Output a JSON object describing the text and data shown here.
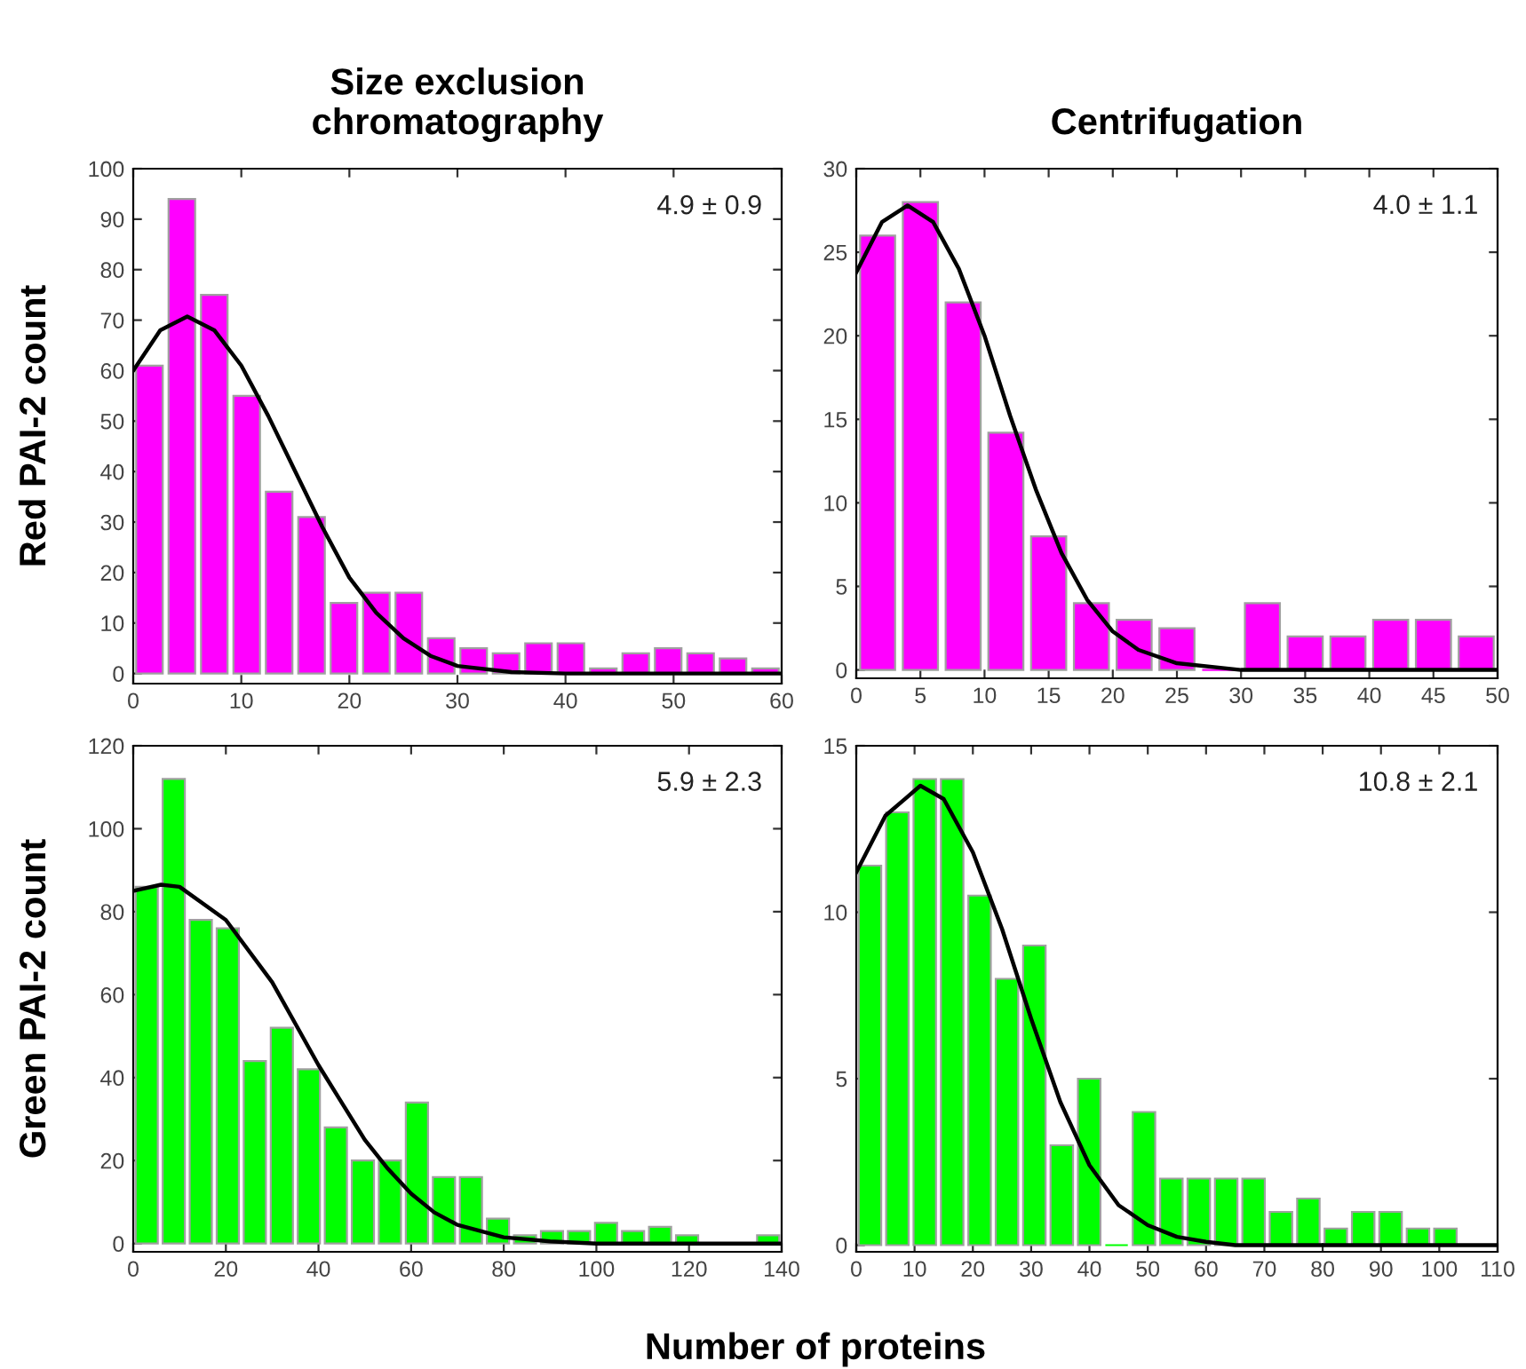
{
  "chart_data": [
    {
      "type": "histogram",
      "title": "Size exclusion\nchromatography",
      "ylabel": "Red PAI-2 count",
      "annotations": [
        "4.9 ± 0.9"
      ],
      "xlim": [
        0,
        60
      ],
      "ylim": [
        -2,
        100
      ],
      "xticks": [
        0,
        10,
        20,
        30,
        40,
        50,
        60
      ],
      "yticks": [
        0,
        10,
        20,
        30,
        40,
        50,
        60,
        70,
        80,
        90,
        100
      ],
      "grid": false,
      "legend": false,
      "series": [
        {
          "color": "#ff00ff",
          "bins": [
            0,
            3,
            6,
            9,
            12,
            15,
            18,
            21,
            24,
            27,
            30,
            33,
            36,
            39,
            42,
            45,
            48,
            51,
            54,
            57,
            60
          ],
          "values": [
            61,
            94,
            75,
            55,
            36,
            31,
            14,
            16,
            16,
            7,
            5,
            4,
            6,
            6,
            1,
            4,
            5,
            4,
            3,
            1
          ]
        },
        {
          "type": "line",
          "color": "#000000",
          "x": [
            0,
            2.5,
            5,
            7.5,
            10,
            12.5,
            15,
            17.5,
            20,
            22.5,
            25,
            27.5,
            30,
            35,
            40,
            60
          ],
          "values": [
            60,
            68,
            70.7,
            68,
            61,
            51,
            40,
            29,
            19,
            12,
            7,
            3.5,
            1.5,
            0.3,
            0,
            0
          ]
        }
      ]
    },
    {
      "type": "histogram",
      "title": "Centrifugation",
      "annotations": [
        "4.0 ± 1.1"
      ],
      "xlim": [
        0,
        50
      ],
      "ylim": [
        -0.5,
        30
      ],
      "xticks": [
        0,
        5,
        10,
        15,
        20,
        25,
        30,
        35,
        40,
        45,
        50
      ],
      "yticks": [
        0,
        5,
        10,
        15,
        20,
        25,
        30
      ],
      "grid": false,
      "legend": false,
      "series": [
        {
          "color": "#ff00ff",
          "bins": [
            0,
            3.33,
            6.67,
            10,
            13.33,
            16.67,
            20,
            23.33,
            26.67,
            30,
            33.33,
            36.67,
            40,
            43.33,
            46.67,
            50
          ],
          "values": [
            26,
            28,
            22,
            14.2,
            8,
            4,
            3,
            2.5,
            0,
            4,
            2,
            2,
            3,
            3,
            2
          ]
        },
        {
          "type": "line",
          "color": "#000000",
          "x": [
            0,
            2,
            4,
            6,
            8,
            10,
            12,
            14,
            16,
            18,
            20,
            22,
            25,
            30,
            50
          ],
          "values": [
            23.8,
            26.8,
            27.8,
            26.8,
            24,
            20,
            15.2,
            10.8,
            7,
            4.2,
            2.3,
            1.2,
            0.4,
            0,
            0
          ]
        }
      ]
    },
    {
      "type": "histogram",
      "ylabel": "Green PAI-2 count",
      "annotations": [
        "5.9 ± 2.3",
        "Number of proteins"
      ],
      "xlim": [
        0,
        140
      ],
      "ylim": [
        -2,
        120
      ],
      "xticks": [
        0,
        20,
        40,
        60,
        80,
        100,
        120,
        140
      ],
      "yticks": [
        0,
        20,
        40,
        60,
        80,
        100,
        120
      ],
      "grid": false,
      "legend": false,
      "series": [
        {
          "color": "#00ff00",
          "bins": [
            0,
            5.83,
            11.67,
            17.5,
            23.33,
            29.17,
            35,
            40.83,
            46.67,
            52.5,
            58.33,
            64.17,
            70,
            75.83,
            81.67,
            87.5,
            93.33,
            99.17,
            105,
            110.83,
            116.67,
            122.5,
            128.33,
            134.17,
            140
          ],
          "values": [
            86,
            112,
            78,
            76,
            44,
            52,
            42,
            28,
            20,
            20,
            34,
            16,
            16,
            6,
            2,
            3,
            3,
            5,
            3,
            4,
            2,
            0,
            0,
            2
          ]
        },
        {
          "type": "line",
          "color": "#000000",
          "x": [
            0,
            6,
            10,
            20,
            30,
            35,
            40,
            45,
            50,
            55,
            60,
            65,
            70,
            80,
            90,
            100,
            140
          ],
          "values": [
            85,
            86.5,
            86,
            78,
            63,
            53,
            43,
            34,
            25,
            18,
            12,
            7.5,
            4.5,
            1.5,
            0.5,
            0,
            0
          ]
        }
      ]
    },
    {
      "type": "histogram",
      "annotations": [
        "10.8 ± 2.1"
      ],
      "xlim": [
        0,
        110
      ],
      "ylim": [
        -0.2,
        15
      ],
      "xticks": [
        0,
        10,
        20,
        30,
        40,
        50,
        60,
        70,
        80,
        90,
        100,
        110
      ],
      "yticks": [
        0,
        5,
        10,
        15
      ],
      "grid": false,
      "legend": false,
      "series": [
        {
          "color": "#00ff00",
          "bins": [
            0,
            4.7,
            9.4,
            14.1,
            18.8,
            23.5,
            28.2,
            32.9,
            37.6,
            42.3,
            47,
            51.7,
            56.4,
            61.1,
            65.8,
            70.5,
            75.2,
            79.9,
            84.6,
            89.3,
            94,
            98.7,
            103.4
          ],
          "values": [
            11.4,
            13,
            14,
            14,
            10.5,
            8,
            9,
            3,
            5,
            0,
            4,
            2,
            2,
            2,
            2,
            1,
            1.4,
            0.5,
            1,
            1,
            0.5,
            0.5
          ]
        },
        {
          "type": "line",
          "color": "#000000",
          "x": [
            0,
            5,
            11,
            15,
            20,
            25,
            30,
            35,
            40,
            45,
            50,
            55,
            60,
            65,
            110
          ],
          "values": [
            11.2,
            12.9,
            13.8,
            13.4,
            11.8,
            9.5,
            6.8,
            4.3,
            2.4,
            1.2,
            0.6,
            0.25,
            0.1,
            0,
            0
          ]
        }
      ]
    }
  ]
}
